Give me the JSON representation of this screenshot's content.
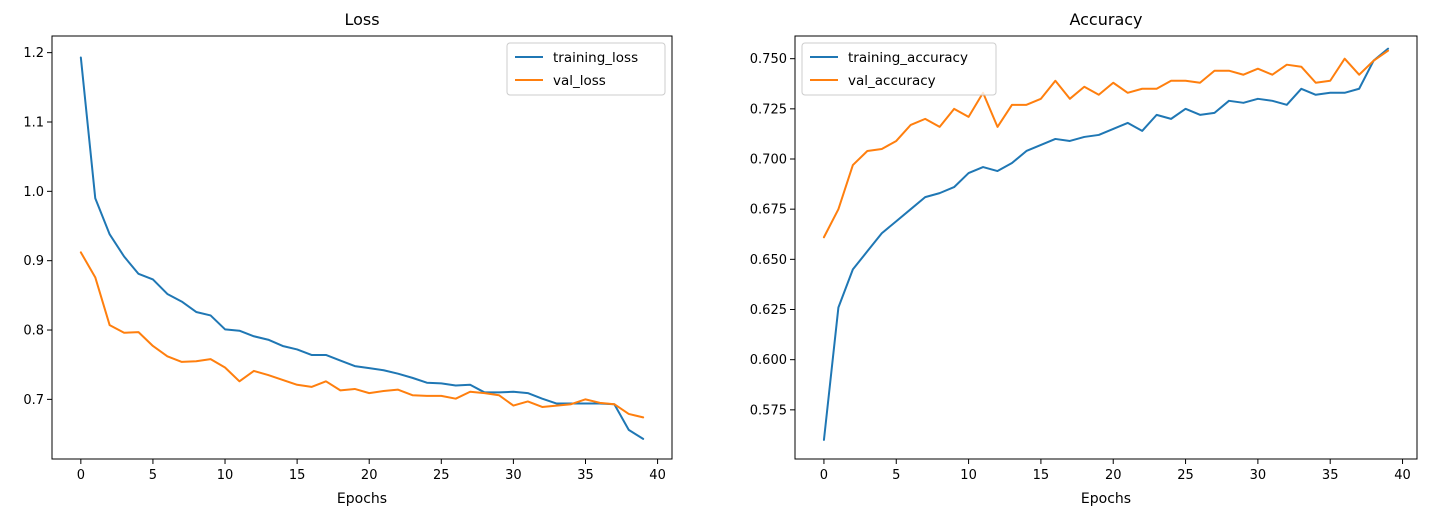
{
  "chart_data": [
    {
      "type": "line",
      "title": "Loss",
      "xlabel": "Epochs",
      "ylabel": "",
      "xlim": [
        -2,
        41
      ],
      "ylim": [
        0.614,
        1.224
      ],
      "xticks": [
        0,
        5,
        10,
        15,
        20,
        25,
        30,
        35,
        40
      ],
      "xtick_labels": [
        "0",
        "5",
        "10",
        "15",
        "20",
        "25",
        "30",
        "35",
        "40"
      ],
      "yticks": [
        0.7,
        0.8,
        0.9,
        1.0,
        1.1,
        1.2
      ],
      "ytick_labels": [
        "0.7",
        "0.8",
        "0.9",
        "1.0",
        "1.1",
        "1.2"
      ],
      "legend_position": "top-right",
      "x": [
        0,
        1,
        2,
        3,
        4,
        5,
        6,
        7,
        8,
        9,
        10,
        11,
        12,
        13,
        14,
        15,
        16,
        17,
        18,
        19,
        20,
        21,
        22,
        23,
        24,
        25,
        26,
        27,
        28,
        29,
        30,
        31,
        32,
        33,
        34,
        35,
        36,
        37,
        38,
        39
      ],
      "series": [
        {
          "name": "training_loss",
          "color": "#1f77b4",
          "values": [
            1.193,
            0.99,
            0.938,
            0.906,
            0.881,
            0.873,
            0.852,
            0.841,
            0.826,
            0.821,
            0.801,
            0.799,
            0.791,
            0.786,
            0.777,
            0.772,
            0.764,
            0.764,
            0.756,
            0.748,
            0.745,
            0.742,
            0.737,
            0.731,
            0.724,
            0.723,
            0.72,
            0.721,
            0.71,
            0.71,
            0.711,
            0.709,
            0.701,
            0.694,
            0.694,
            0.694,
            0.694,
            0.693,
            0.656,
            0.643
          ]
        },
        {
          "name": "val_loss",
          "color": "#ff7f0e",
          "values": [
            0.912,
            0.876,
            0.807,
            0.796,
            0.797,
            0.777,
            0.762,
            0.754,
            0.755,
            0.758,
            0.746,
            0.726,
            0.741,
            0.735,
            0.728,
            0.721,
            0.718,
            0.726,
            0.713,
            0.715,
            0.709,
            0.712,
            0.714,
            0.706,
            0.705,
            0.705,
            0.701,
            0.711,
            0.709,
            0.706,
            0.691,
            0.697,
            0.689,
            0.691,
            0.693,
            0.7,
            0.695,
            0.693,
            0.679,
            0.674
          ]
        }
      ]
    },
    {
      "type": "line",
      "title": "Accuracy",
      "xlabel": "Epochs",
      "ylabel": "",
      "xlim": [
        -2,
        41
      ],
      "ylim": [
        0.5505,
        0.7613
      ],
      "xticks": [
        0,
        5,
        10,
        15,
        20,
        25,
        30,
        35,
        40
      ],
      "xtick_labels": [
        "0",
        "5",
        "10",
        "15",
        "20",
        "25",
        "30",
        "35",
        "40"
      ],
      "yticks": [
        0.575,
        0.6,
        0.625,
        0.65,
        0.675,
        0.7,
        0.725,
        0.75
      ],
      "ytick_labels": [
        "0.575",
        "0.600",
        "0.625",
        "0.650",
        "0.675",
        "0.700",
        "0.725",
        "0.750"
      ],
      "legend_position": "top-left",
      "x": [
        0,
        1,
        2,
        3,
        4,
        5,
        6,
        7,
        8,
        9,
        10,
        11,
        12,
        13,
        14,
        15,
        16,
        17,
        18,
        19,
        20,
        21,
        22,
        23,
        24,
        25,
        26,
        27,
        28,
        29,
        30,
        31,
        32,
        33,
        34,
        35,
        36,
        37,
        38,
        39
      ],
      "series": [
        {
          "name": "training_accuracy",
          "color": "#1f77b4",
          "values": [
            0.56,
            0.626,
            0.645,
            0.654,
            0.663,
            0.669,
            0.675,
            0.681,
            0.683,
            0.686,
            0.693,
            0.696,
            0.694,
            0.698,
            0.704,
            0.707,
            0.71,
            0.709,
            0.711,
            0.712,
            0.715,
            0.718,
            0.714,
            0.722,
            0.72,
            0.725,
            0.722,
            0.723,
            0.729,
            0.728,
            0.73,
            0.729,
            0.727,
            0.735,
            0.732,
            0.733,
            0.733,
            0.735,
            0.749,
            0.755
          ]
        },
        {
          "name": "val_accuracy",
          "color": "#ff7f0e",
          "values": [
            0.661,
            0.675,
            0.697,
            0.704,
            0.705,
            0.709,
            0.717,
            0.72,
            0.716,
            0.725,
            0.721,
            0.733,
            0.716,
            0.727,
            0.727,
            0.73,
            0.739,
            0.73,
            0.736,
            0.732,
            0.738,
            0.733,
            0.735,
            0.735,
            0.739,
            0.739,
            0.738,
            0.744,
            0.744,
            0.742,
            0.745,
            0.742,
            0.747,
            0.746,
            0.738,
            0.739,
            0.75,
            0.742,
            0.749,
            0.754
          ]
        }
      ]
    }
  ]
}
